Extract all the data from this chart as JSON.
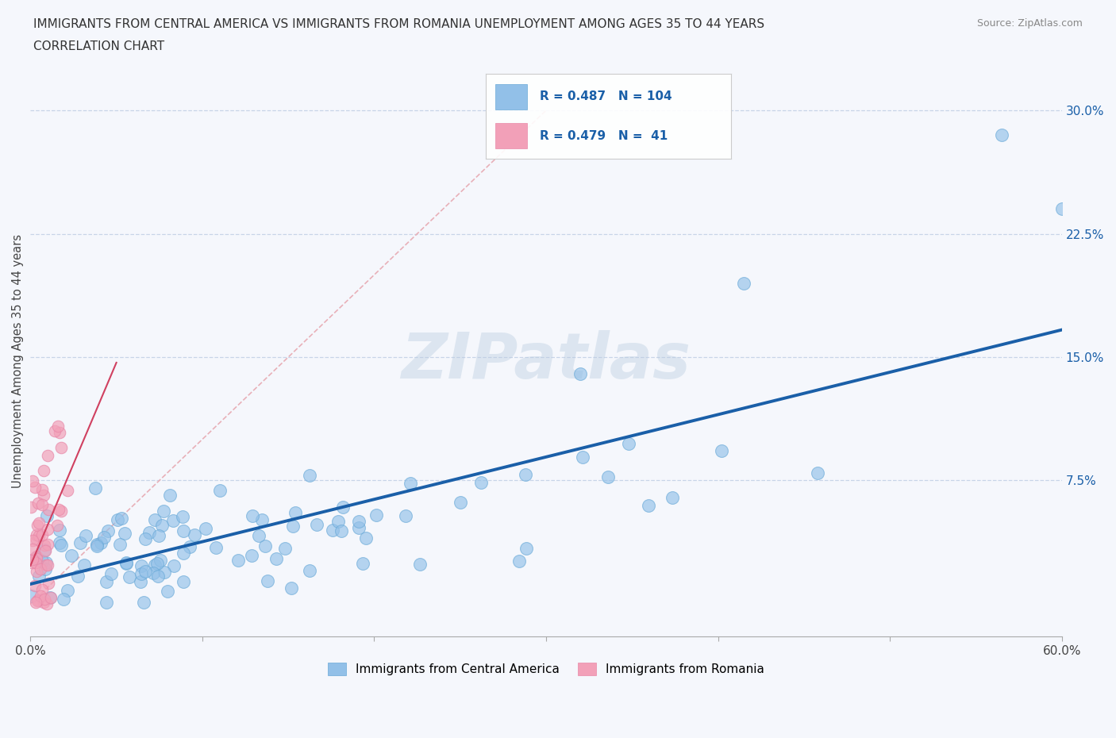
{
  "title_line1": "IMMIGRANTS FROM CENTRAL AMERICA VS IMMIGRANTS FROM ROMANIA UNEMPLOYMENT AMONG AGES 35 TO 44 YEARS",
  "title_line2": "CORRELATION CHART",
  "source": "Source: ZipAtlas.com",
  "ylabel": "Unemployment Among Ages 35 to 44 years",
  "xlim": [
    0.0,
    0.6
  ],
  "ylim": [
    -0.02,
    0.315
  ],
  "ytick_vals": [
    0.075,
    0.15,
    0.225,
    0.3
  ],
  "ytick_labels": [
    "7.5%",
    "15.0%",
    "22.5%",
    "30.0%"
  ],
  "blue_R": 0.487,
  "blue_N": 104,
  "pink_R": 0.479,
  "pink_N": 41,
  "blue_color": "#92c0e8",
  "pink_color": "#f2a0b8",
  "blue_edge_color": "#6aaad8",
  "pink_edge_color": "#e888a8",
  "blue_line_color": "#1a5fa8",
  "pink_line_color": "#d04060",
  "diag_color": "#e8b0b8",
  "grid_color": "#c8d4e8",
  "background_color": "#f5f7fc",
  "text_color": "#444444",
  "axis_tick_color": "#1a5fa8"
}
